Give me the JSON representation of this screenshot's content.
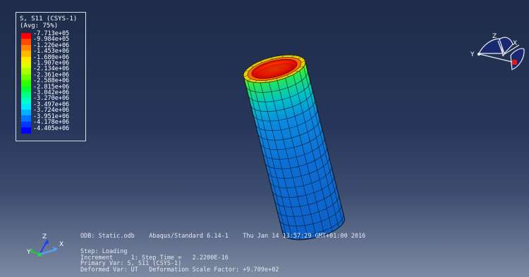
{
  "legend": {
    "title": "S, S11 (CSYS-1)",
    "averaging": "(Avg: 75%)",
    "values": [
      "-7.713e+05",
      "-9.984e+05",
      "-1.226e+06",
      "-1.453e+06",
      "-1.680e+06",
      "-1.907e+06",
      "-2.134e+06",
      "-2.361e+06",
      "-2.588e+06",
      "-2.815e+06",
      "-3.042e+06",
      "-3.270e+06",
      "-3.497e+06",
      "-3.724e+06",
      "-3.951e+06",
      "-4.178e+06",
      "-4.405e+06"
    ],
    "colors": [
      "#ff0000",
      "#ff4a00",
      "#ff8600",
      "#ffba00",
      "#ffe800",
      "#dfff00",
      "#a8ff00",
      "#6cff00",
      "#32ff00",
      "#00ff3a",
      "#00ff84",
      "#00ffc8",
      "#00e8ff",
      "#00b2ff",
      "#0073ff",
      "#0037ff",
      "#0000ff"
    ]
  },
  "triad_top": {
    "x_label": "X",
    "y_label": "Y",
    "z_label": "Z"
  },
  "triad_bottom": {
    "x_label": "X",
    "y_label": "Y",
    "z_label": "Z"
  },
  "info": {
    "odb_line": "ODB: Static.odb    Abaqus/Standard 6.14-1    Thu Jan 14 13:57:29 GMT+01:00 2016",
    "step": "Step: Loading",
    "increment": "Increment     1: Step Time =   2.2200E-16",
    "primary_var": "Primary Var: S, S11 (CSYS-1)",
    "deformed_var": "Deformed Var: UT   Deformation Scale Factor: +9.709e+02"
  },
  "colors": {
    "background_top": "#1e2c49",
    "background_bottom": "#7d8aa3"
  }
}
